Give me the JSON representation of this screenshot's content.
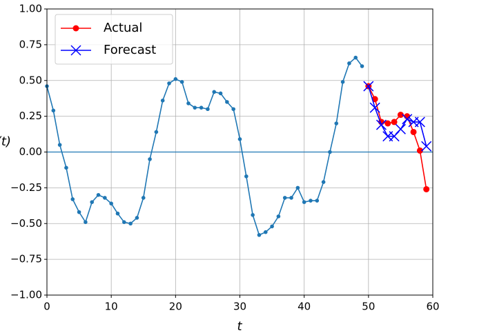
{
  "chart_data": {
    "type": "line",
    "xlabel": "t",
    "ylabel": "x(t)",
    "xlim": [
      0,
      60
    ],
    "ylim": [
      -1,
      1
    ],
    "xticks": [
      0,
      10,
      20,
      30,
      40,
      50,
      60
    ],
    "yticks": [
      {
        "value": -1,
        "label": "−1.00"
      },
      {
        "value": -0.75,
        "label": "−0.75"
      },
      {
        "value": -0.5,
        "label": "−0.50"
      },
      {
        "value": -0.25,
        "label": "−0.25"
      },
      {
        "value": 0,
        "label": "0.00"
      },
      {
        "value": 0.25,
        "label": "0.25"
      },
      {
        "value": 0.5,
        "label": "0.50"
      },
      {
        "value": 0.75,
        "label": "0.75"
      },
      {
        "value": 1,
        "label": "1.00"
      }
    ],
    "grid": true,
    "hline": 0,
    "legend": "upper left",
    "series": [
      {
        "color": "#1f77b4",
        "marker": ".",
        "x": [
          0,
          1,
          2,
          3,
          4,
          5,
          6,
          7,
          8,
          9,
          10,
          11,
          12,
          13,
          14,
          15,
          16,
          17,
          18,
          19,
          20,
          21,
          22,
          23,
          24,
          25,
          26,
          27,
          28,
          29,
          30,
          31,
          32,
          33,
          34,
          35,
          36,
          37,
          38,
          39,
          40,
          41,
          42,
          43,
          44,
          45,
          46,
          47,
          48,
          49
        ],
        "values": [
          0.46,
          0.29,
          0.05,
          -0.11,
          -0.33,
          -0.42,
          -0.49,
          -0.35,
          -0.3,
          -0.32,
          -0.36,
          -0.43,
          -0.49,
          -0.5,
          -0.46,
          -0.32,
          -0.05,
          0.14,
          0.36,
          0.48,
          0.51,
          0.49,
          0.34,
          0.31,
          0.31,
          0.3,
          0.42,
          0.41,
          0.35,
          0.3,
          0.09,
          -0.17,
          -0.44,
          -0.58,
          -0.56,
          -0.52,
          -0.45,
          -0.32,
          -0.32,
          -0.25,
          -0.35,
          -0.34,
          -0.34,
          -0.21,
          0.0,
          0.2,
          0.49,
          0.62,
          0.66,
          0.6
        ]
      },
      {
        "name": "Actual",
        "color": "red",
        "marker": "o",
        "x": [
          50,
          51,
          52,
          53,
          54,
          55,
          56,
          57,
          58,
          59
        ],
        "values": [
          0.46,
          0.37,
          0.21,
          0.2,
          0.21,
          0.26,
          0.25,
          0.14,
          0.01,
          -0.26
        ]
      },
      {
        "name": "Forecast",
        "color": "blue",
        "marker": "x",
        "x": [
          50,
          51,
          52,
          53,
          54,
          55,
          56,
          57,
          58,
          59
        ],
        "values": [
          0.46,
          0.31,
          0.19,
          0.11,
          0.11,
          0.16,
          0.23,
          0.21,
          0.21,
          0.04
        ]
      }
    ]
  }
}
